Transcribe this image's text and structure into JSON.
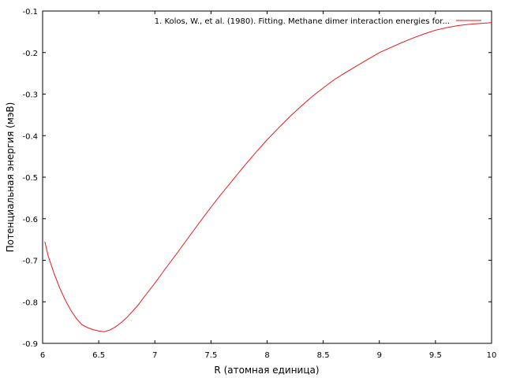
{
  "chart_data": {
    "type": "line",
    "xlabel": "R (атомная единица)",
    "ylabel": "Потенциальная энергия (мэВ)",
    "xlim": [
      6,
      10
    ],
    "ylim": [
      -0.9,
      -0.1
    ],
    "xticks": [
      "6",
      "6.5",
      "7",
      "7.5",
      "8",
      "8.5",
      "9",
      "9.5",
      "10"
    ],
    "yticks": [
      "-0.9",
      "-0.8",
      "-0.7",
      "-0.6",
      "-0.5",
      "-0.4",
      "-0.3",
      "-0.2",
      "-0.1"
    ],
    "grid": false,
    "legend_position": "top-right",
    "series": [
      {
        "name": "1. Kolos, W., et al. (1980). Fitting. Methane dimer interaction energies for...",
        "color": "#e41a1c",
        "x": [
          6.02,
          6.05,
          6.1,
          6.15,
          6.2,
          6.25,
          6.3,
          6.35,
          6.4,
          6.45,
          6.5,
          6.55,
          6.6,
          6.65,
          6.7,
          6.75,
          6.8,
          6.85,
          6.9,
          7.0,
          7.1,
          7.2,
          7.3,
          7.4,
          7.5,
          7.6,
          7.7,
          7.8,
          7.9,
          8.0,
          8.1,
          8.2,
          8.3,
          8.4,
          8.5,
          8.6,
          8.7,
          8.8,
          8.9,
          9.0,
          9.1,
          9.2,
          9.3,
          9.4,
          9.5,
          9.6,
          9.7,
          9.8,
          9.9,
          10.0
        ],
        "y": [
          -0.655,
          -0.69,
          -0.73,
          -0.765,
          -0.795,
          -0.82,
          -0.84,
          -0.855,
          -0.862,
          -0.867,
          -0.87,
          -0.872,
          -0.868,
          -0.86,
          -0.85,
          -0.838,
          -0.823,
          -0.808,
          -0.79,
          -0.755,
          -0.718,
          -0.682,
          -0.645,
          -0.608,
          -0.572,
          -0.538,
          -0.505,
          -0.472,
          -0.44,
          -0.41,
          -0.382,
          -0.355,
          -0.33,
          -0.306,
          -0.285,
          -0.265,
          -0.248,
          -0.232,
          -0.216,
          -0.2,
          -0.188,
          -0.176,
          -0.165,
          -0.155,
          -0.146,
          -0.14,
          -0.135,
          -0.132,
          -0.13,
          -0.128
        ]
      }
    ]
  }
}
